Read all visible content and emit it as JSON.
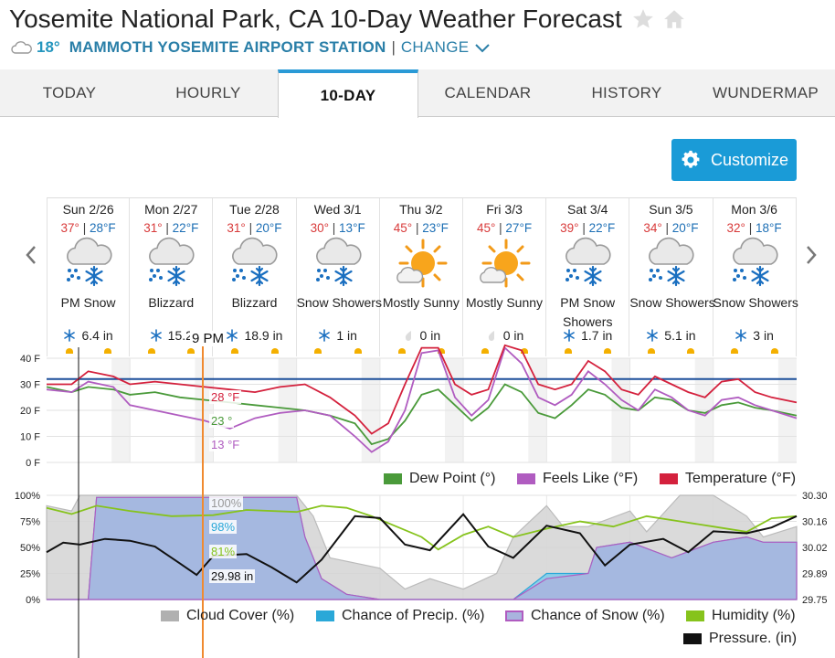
{
  "header": {
    "title": "Yosemite National Park, CA 10-Day Weather Forecast",
    "current_temp": "18°",
    "station": "MAMMOTH YOSEMITE AIRPORT STATION",
    "separator": "|",
    "change": "CHANGE"
  },
  "tabs": [
    {
      "label": "TODAY",
      "active": false
    },
    {
      "label": "HOURLY",
      "active": false
    },
    {
      "label": "10-DAY",
      "active": true
    },
    {
      "label": "CALENDAR",
      "active": false
    },
    {
      "label": "HISTORY",
      "active": false
    },
    {
      "label": "WUNDERMAP",
      "active": false
    }
  ],
  "customize_label": "Customize",
  "days": [
    {
      "label": "Sun 2/26",
      "hi": "37°",
      "lo": "28°F",
      "icon": "snow-cloud",
      "cond1": "PM Snow",
      "cond2": "",
      "precip_icon": "snowflake",
      "precip": "6.4 in"
    },
    {
      "label": "Mon 2/27",
      "hi": "31°",
      "lo": "22°F",
      "icon": "snow-cloud",
      "cond1": "Blizzard",
      "cond2": "",
      "precip_icon": "snowflake",
      "precip": "15.2"
    },
    {
      "label": "Tue 2/28",
      "hi": "31°",
      "lo": "20°F",
      "icon": "snow-cloud",
      "cond1": "Blizzard",
      "cond2": "",
      "precip_icon": "snowflake",
      "precip": "18.9 in"
    },
    {
      "label": "Wed 3/1",
      "hi": "30°",
      "lo": "13°F",
      "icon": "snow-cloud",
      "cond1": "Snow Showers",
      "cond2": "",
      "precip_icon": "snowflake",
      "precip": "1 in"
    },
    {
      "label": "Thu 3/2",
      "hi": "45°",
      "lo": "23°F",
      "icon": "partly-sunny",
      "cond1": "Mostly Sunny",
      "cond2": "",
      "precip_icon": "raindrop",
      "precip": "0 in"
    },
    {
      "label": "Fri 3/3",
      "hi": "45°",
      "lo": "27°F",
      "icon": "partly-sunny",
      "cond1": "Mostly Sunny",
      "cond2": "",
      "precip_icon": "raindrop",
      "precip": "0 in"
    },
    {
      "label": "Sat 3/4",
      "hi": "39°",
      "lo": "22°F",
      "icon": "snow-cloud",
      "cond1": "PM Snow",
      "cond2": "Showers",
      "precip_icon": "snowflake",
      "precip": "1.7 in"
    },
    {
      "label": "Sun 3/5",
      "hi": "34°",
      "lo": "20°F",
      "icon": "snow-cloud",
      "cond1": "Snow Showers",
      "cond2": "",
      "precip_icon": "snowflake",
      "precip": "5.1 in"
    },
    {
      "label": "Mon 3/6",
      "hi": "32°",
      "lo": "18°F",
      "icon": "snow-cloud",
      "cond1": "Snow Showers",
      "cond2": "",
      "precip_icon": "snowflake",
      "precip": "3 in"
    }
  ],
  "hover": {
    "time": "9 PM",
    "temp": "28 °F",
    "dew": "23 °",
    "feels": "13 °F",
    "cloud": "100%",
    "precip": "98%",
    "humidity": "81%",
    "pressure": "29.98 in"
  },
  "colors": {
    "temperature": "#d4213d",
    "feels_like": "#b05cc0",
    "dew_point": "#4a9a3a",
    "cloud": "#b0b0b0",
    "precip": "#2aa8d8",
    "snow": "#a9b4de",
    "humidity": "#86c31c",
    "pressure": "#111111",
    "freezing": "#1d4f9a"
  },
  "chart_data": [
    {
      "type": "line",
      "ylabel_ticks": [
        "40 F",
        "30 F",
        "20 F",
        "10 F",
        "0 F"
      ],
      "ylim": [
        0,
        40
      ],
      "xlim_days": [
        0,
        9
      ],
      "series": [
        {
          "name": "Dew Point (°)",
          "color": "#4a9a3a",
          "x": [
            0,
            0.3,
            0.5,
            0.8,
            1,
            1.3,
            1.6,
            1.9,
            2.2,
            2.5,
            2.8,
            3.1,
            3.4,
            3.7,
            3.9,
            4.1,
            4.3,
            4.5,
            4.7,
            4.9,
            5.1,
            5.3,
            5.5,
            5.7,
            5.9,
            6.1,
            6.3,
            6.5,
            6.7,
            6.9,
            7.1,
            7.3,
            7.5,
            7.7,
            7.9,
            8.1,
            8.3,
            8.5,
            8.7,
            9
          ],
          "values": [
            29,
            27,
            29,
            28,
            26,
            27,
            25,
            24,
            23,
            22,
            21,
            20,
            18,
            15,
            7,
            9,
            16,
            26,
            28,
            22,
            16,
            21,
            30,
            27,
            19,
            17,
            22,
            28,
            26,
            21,
            20,
            25,
            24,
            20,
            19,
            22,
            23,
            21,
            20,
            18
          ]
        },
        {
          "name": "Feels Like (°F)",
          "color": "#b05cc0",
          "x": [
            0,
            0.3,
            0.5,
            0.8,
            1,
            1.3,
            1.6,
            1.9,
            2.2,
            2.5,
            2.8,
            3.1,
            3.4,
            3.7,
            3.9,
            4.1,
            4.3,
            4.5,
            4.7,
            4.9,
            5.1,
            5.3,
            5.5,
            5.7,
            5.9,
            6.1,
            6.3,
            6.5,
            6.7,
            6.9,
            7.1,
            7.3,
            7.5,
            7.7,
            7.9,
            8.1,
            8.3,
            8.5,
            8.7,
            9
          ],
          "values": [
            28,
            27,
            31,
            29,
            22,
            20,
            18,
            16,
            13,
            17,
            19,
            20,
            18,
            10,
            4,
            8,
            20,
            42,
            43,
            25,
            18,
            24,
            44,
            38,
            25,
            22,
            26,
            35,
            30,
            24,
            20,
            28,
            25,
            20,
            18,
            24,
            25,
            22,
            20,
            17
          ]
        },
        {
          "name": "Temperature (°F)",
          "color": "#d4213d",
          "x": [
            0,
            0.3,
            0.5,
            0.8,
            1,
            1.3,
            1.6,
            1.9,
            2.2,
            2.5,
            2.8,
            3.1,
            3.4,
            3.7,
            3.9,
            4.1,
            4.3,
            4.5,
            4.7,
            4.9,
            5.1,
            5.3,
            5.5,
            5.7,
            5.9,
            6.1,
            6.3,
            6.5,
            6.7,
            6.9,
            7.1,
            7.3,
            7.5,
            7.7,
            7.9,
            8.1,
            8.3,
            8.5,
            8.7,
            9
          ],
          "values": [
            30,
            30,
            35,
            33,
            30,
            31,
            30,
            29,
            28,
            27,
            29,
            30,
            25,
            18,
            11,
            15,
            30,
            44,
            44,
            30,
            26,
            28,
            45,
            43,
            30,
            28,
            30,
            39,
            35,
            28,
            26,
            33,
            30,
            27,
            25,
            31,
            32,
            27,
            25,
            23
          ]
        }
      ],
      "freezing_line": 32
    },
    {
      "type": "area",
      "ylabel_ticks": [
        "100%",
        "75%",
        "50%",
        "25%",
        "0%"
      ],
      "ylim": [
        0,
        100
      ],
      "y2_ticks": [
        "30.30",
        "30.16",
        "30.02",
        "29.89",
        "29.75"
      ],
      "y2lim": [
        29.75,
        30.3
      ],
      "xlim_days": [
        0,
        9
      ],
      "series": [
        {
          "name": "Cloud Cover (%)",
          "color": "#b0b0b0",
          "x": [
            0,
            0.3,
            0.4,
            0.6,
            1,
            2,
            2.4,
            3,
            3.2,
            3.4,
            3.7,
            4,
            4.3,
            4.6,
            5,
            5.4,
            5.6,
            6,
            6.2,
            6.5,
            7,
            7.2,
            7.6,
            8,
            8.4,
            8.6,
            9
          ],
          "values": [
            90,
            85,
            100,
            100,
            100,
            100,
            100,
            100,
            80,
            40,
            35,
            30,
            10,
            20,
            10,
            25,
            60,
            90,
            70,
            70,
            85,
            65,
            100,
            100,
            80,
            60,
            70
          ]
        },
        {
          "name": "Chance of Precip. (%)",
          "color": "#2aa8d8",
          "x": [
            0,
            0.3,
            0.5,
            0.6,
            1,
            2,
            2.4,
            3,
            3.1,
            3.3,
            3.6,
            4,
            5,
            5.6,
            6,
            6.5,
            6.6,
            7,
            7.5,
            8,
            8.4,
            8.6,
            9
          ],
          "values": [
            0,
            0,
            0,
            98,
            98,
            98,
            98,
            98,
            60,
            20,
            5,
            0,
            0,
            0,
            25,
            25,
            50,
            55,
            40,
            55,
            60,
            55,
            55
          ]
        },
        {
          "name": "Chance of Snow (%)",
          "color": "#a9b4de",
          "x": [
            0,
            0.3,
            0.5,
            0.6,
            1,
            2,
            2.4,
            3,
            3.1,
            3.3,
            3.6,
            4,
            5,
            5.6,
            6,
            6.5,
            6.6,
            7,
            7.5,
            8,
            8.4,
            8.6,
            9
          ],
          "values": [
            0,
            0,
            0,
            98,
            98,
            98,
            98,
            98,
            60,
            20,
            5,
            0,
            0,
            0,
            20,
            25,
            50,
            55,
            40,
            55,
            60,
            55,
            55
          ]
        },
        {
          "name": "Humidity (%)",
          "color": "#86c31c",
          "x": [
            0,
            0.3,
            0.6,
            1,
            1.5,
            2,
            2.4,
            3,
            3.3,
            3.6,
            3.9,
            4.2,
            4.5,
            4.7,
            5,
            5.3,
            5.6,
            6,
            6.4,
            6.8,
            7.2,
            7.6,
            8,
            8.4,
            8.7,
            9
          ],
          "values": [
            88,
            82,
            90,
            85,
            80,
            81,
            86,
            84,
            90,
            88,
            80,
            70,
            60,
            48,
            62,
            70,
            60,
            68,
            75,
            70,
            80,
            75,
            70,
            65,
            78,
            80
          ]
        },
        {
          "name": "Pressure. (in)",
          "color": "#111111",
          "axis": "y2",
          "x": [
            0,
            0.2,
            0.4,
            0.7,
            1,
            1.3,
            1.6,
            1.8,
            2,
            2.4,
            2.7,
            3,
            3.3,
            3.7,
            4,
            4.3,
            4.6,
            5,
            5.3,
            5.6,
            6,
            6.4,
            6.7,
            7,
            7.4,
            7.7,
            8,
            8.4,
            8.7,
            9
          ],
          "values": [
            30.0,
            30.05,
            30.04,
            30.07,
            30.06,
            30.03,
            29.94,
            29.88,
            29.98,
            29.99,
            29.92,
            29.84,
            29.96,
            30.19,
            30.18,
            30.04,
            30.01,
            30.2,
            30.03,
            29.97,
            30.14,
            30.1,
            29.93,
            30.04,
            30.07,
            30.0,
            30.11,
            30.1,
            30.13,
            30.19
          ]
        }
      ]
    }
  ]
}
